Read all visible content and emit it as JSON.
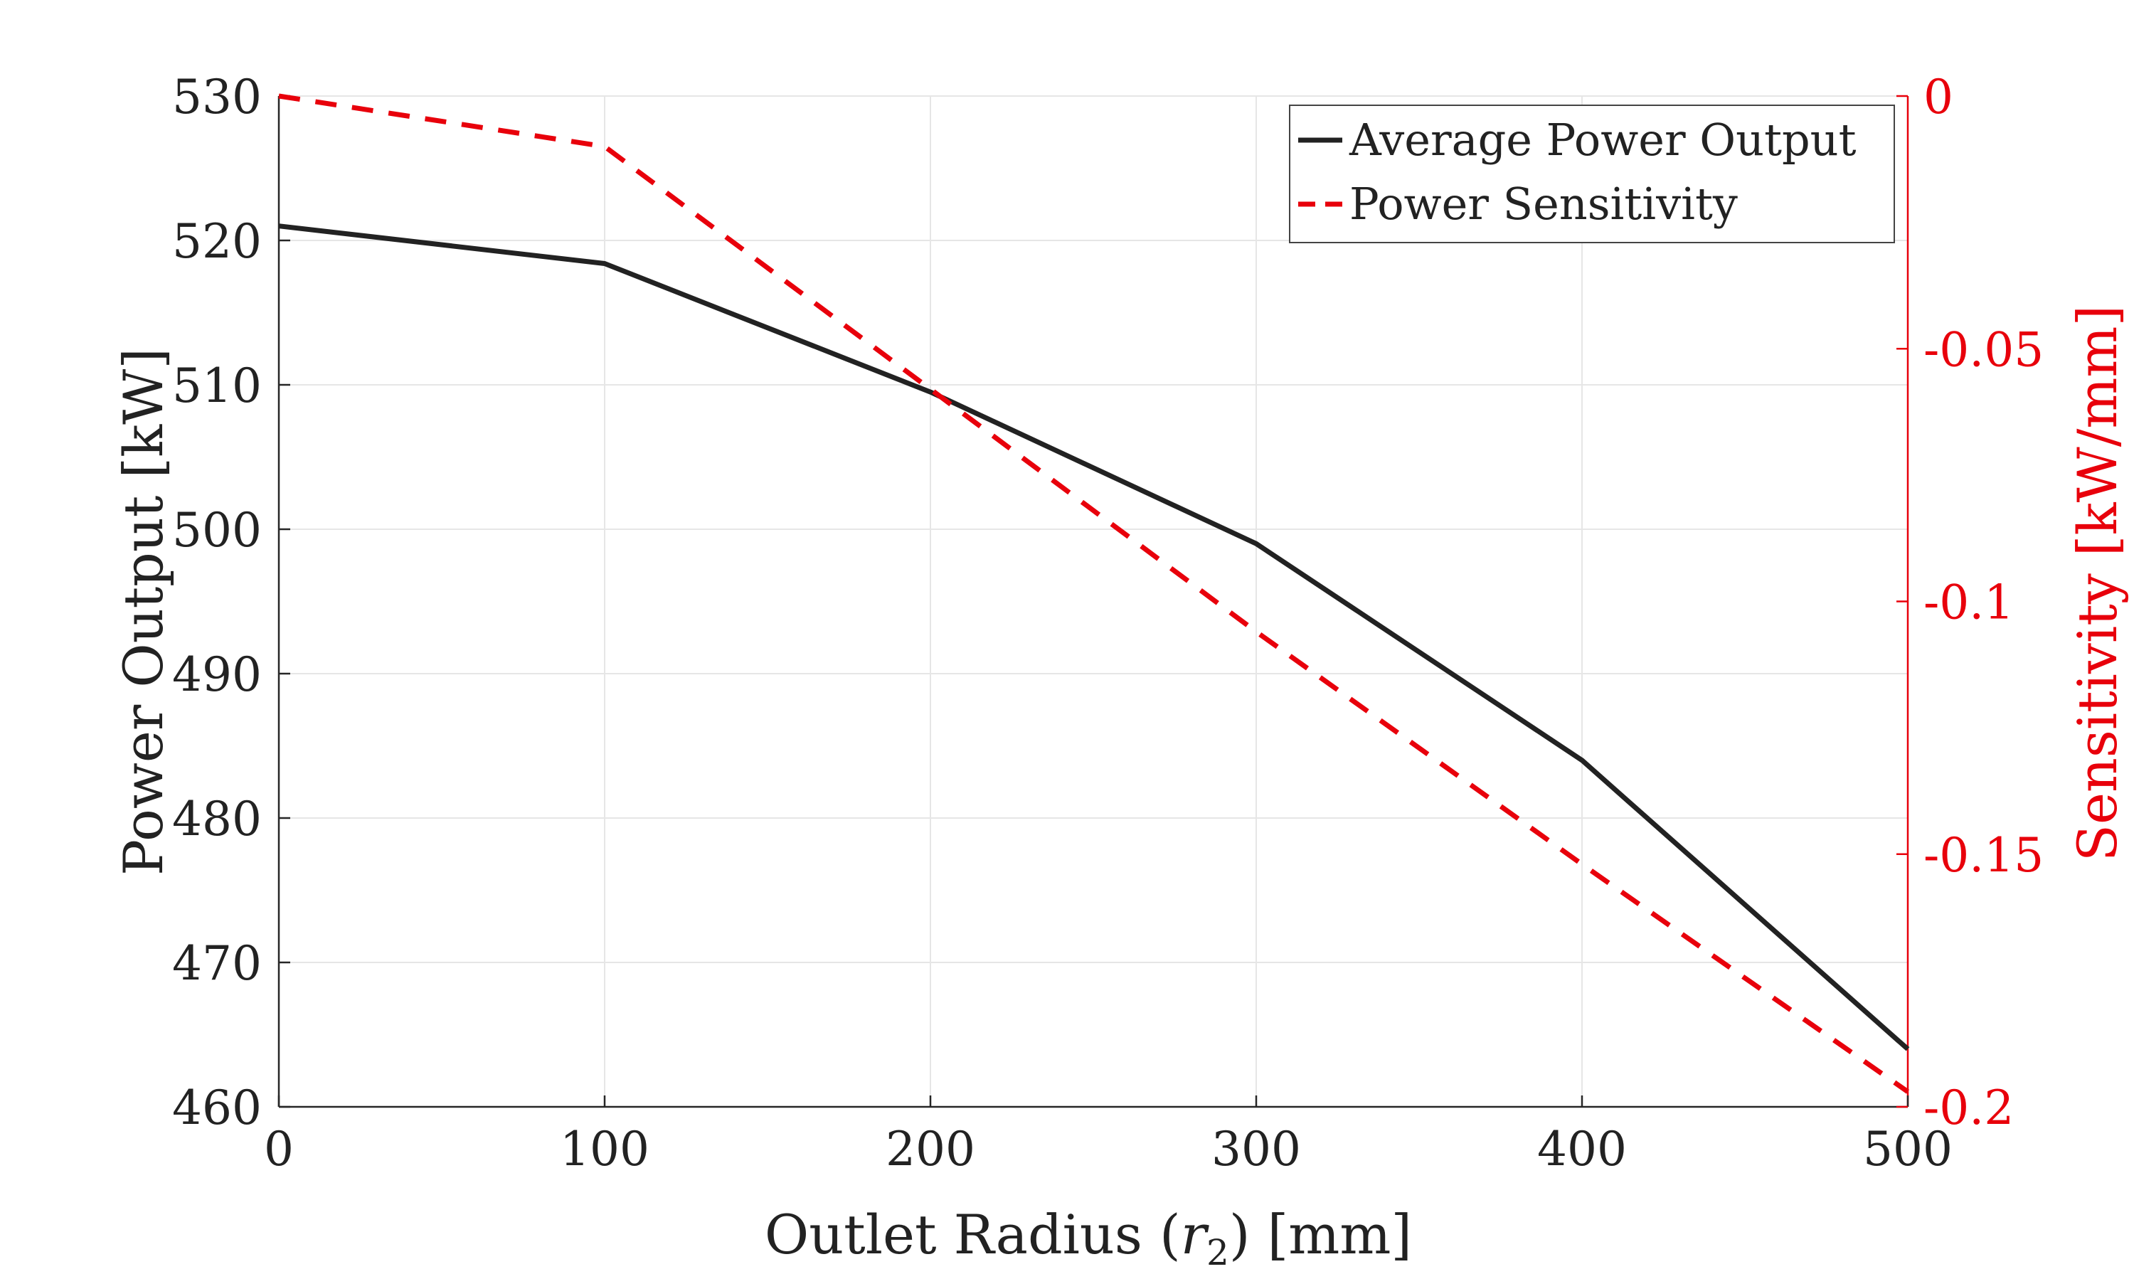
{
  "chart_data": {
    "type": "line",
    "x": [
      0,
      100,
      200,
      300,
      400,
      500
    ],
    "xlabel_main": "Outlet Radius (",
    "xlabel_var": "r",
    "xlabel_sub": "2",
    "xlabel_end": ") [mm]",
    "ylabel": "Power Output [kW]",
    "y2label": "Sensitivity [kW/mm]",
    "xlim": [
      0,
      500
    ],
    "ylim": [
      460,
      530
    ],
    "y2lim": [
      -0.2,
      0
    ],
    "xticks": [
      "0",
      "100",
      "200",
      "300",
      "400",
      "500"
    ],
    "yticks": [
      "460",
      "470",
      "480",
      "490",
      "500",
      "510",
      "520",
      "530"
    ],
    "y2ticks": [
      "-0.2",
      "-0.15",
      "-0.1",
      "-0.05",
      "0"
    ],
    "grid": true,
    "legend_position": "top-right",
    "series": [
      {
        "name": "Average Power Output",
        "axis": "left",
        "color": "#222222",
        "style": "solid",
        "values": [
          521.0,
          518.4,
          509.5,
          499.0,
          484.0,
          464.0
        ]
      },
      {
        "name": "Power Sensitivity",
        "axis": "right",
        "color": "#e8000b",
        "style": "dashed",
        "values": [
          0,
          -0.01,
          -0.058,
          -0.106,
          -0.152,
          -0.197
        ]
      }
    ]
  }
}
